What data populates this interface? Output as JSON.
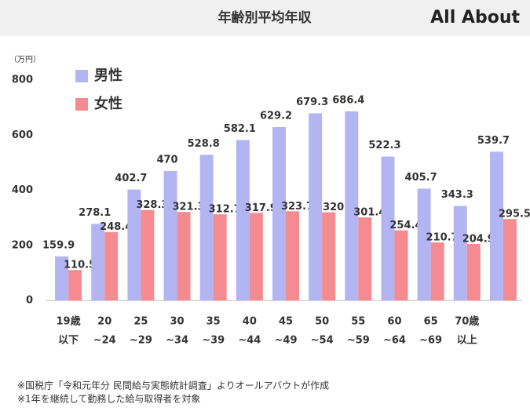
{
  "chart_data": {
    "type": "bar",
    "title": "年齢別平均年収",
    "logo": "All About",
    "unit": "（万円）",
    "categories": [
      [
        "19歳",
        "以下"
      ],
      [
        "20",
        "~24"
      ],
      [
        "25",
        "~29"
      ],
      [
        "30",
        "~34"
      ],
      [
        "35",
        "~39"
      ],
      [
        "40",
        "~44"
      ],
      [
        "45",
        "~49"
      ],
      [
        "50",
        "~54"
      ],
      [
        "55",
        "~59"
      ],
      [
        "60",
        "~64"
      ],
      [
        "65",
        "~69"
      ],
      [
        "70歳",
        "以上"
      ],
      [
        null,
        null
      ]
    ],
    "series": [
      {
        "name": "男性",
        "color": "#b3b5f3",
        "values": [
          159.9,
          278.1,
          402.7,
          470,
          528.8,
          582.1,
          629.2,
          679.3,
          686.4,
          522.3,
          405.7,
          343.3,
          539.7
        ]
      },
      {
        "name": "女性",
        "color": "#f58b90",
        "values": [
          110.5,
          248.4,
          328.3,
          321.3,
          312.7,
          317.9,
          323.7,
          320,
          301.4,
          254.4,
          210.7,
          204.9,
          295.5
        ]
      }
    ],
    "ylim": [
      0,
      800
    ],
    "yticks": [
      0,
      200,
      400,
      600,
      800
    ],
    "grid": false,
    "notes": [
      "※国税庁「令和元年分 民間給与実態統計調査」よりオールアバウトが作成",
      "※1年を継続して勤務した給与取得者を対象"
    ]
  }
}
